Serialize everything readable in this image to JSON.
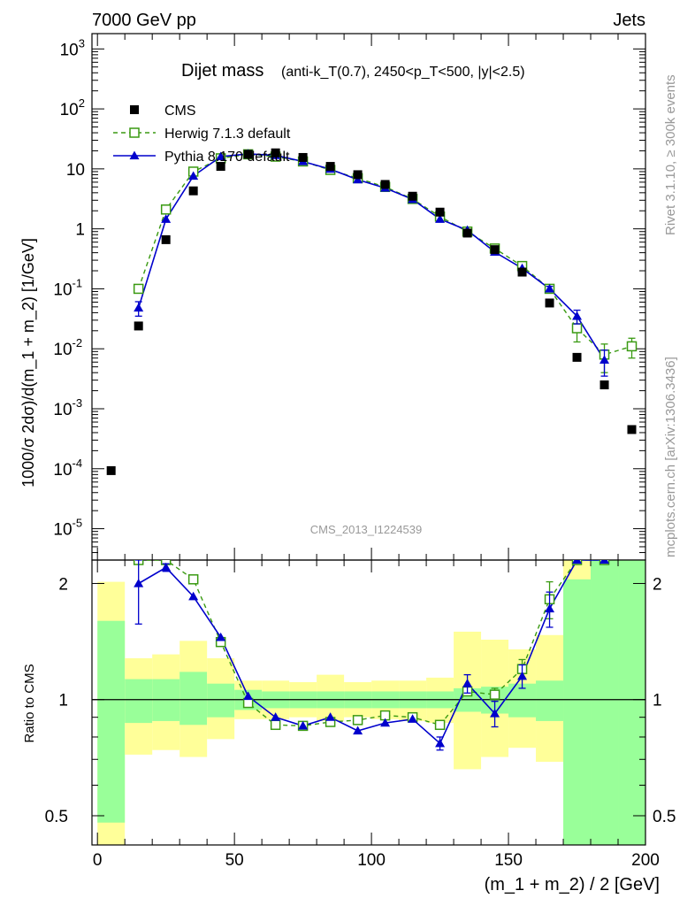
{
  "header": {
    "left": "7000 GeV pp",
    "right": "Jets",
    "side_top": "Rivet 3.1.10, ≥ 300k events",
    "side_bottom": "mcplots.cern.ch [arXiv:1306.3436]",
    "watermark": "CMS_2013_I1224539"
  },
  "colors": {
    "data": "#000000",
    "herwig": "#3a9a12",
    "pythia": "#0000cc",
    "band_inner": "#99ff99",
    "band_outer": "#ffff99"
  },
  "chart_data": {
    "type": "line",
    "title": "Dijet mass",
    "title_detail": "(anti-k_T(0.7), 2450<p_T<500, |y|<2.5)",
    "xlabel": "(m_1 + m_2) / 2 [GeV]",
    "ylabel": "1000/σ 2dσ)/d(m_1 + m_2) [1/GeV]",
    "ratio_ylabel": "Ratio to CMS",
    "xlim": [
      -2,
      200
    ],
    "ylim": [
      3e-06,
      1800
    ],
    "yscale": "log",
    "ratio_ylim": [
      0.42,
      2.3
    ],
    "ratio_yscale": "log",
    "x_ticks": [
      "0",
      "50",
      "100",
      "150",
      "200"
    ],
    "y_ticks": [
      "10^3",
      "10^2",
      "10",
      "1",
      "10^-1",
      "10^-2",
      "10^-3",
      "10^-4",
      "10^-5"
    ],
    "ratio_ticks": [
      "2",
      "1",
      "0.5"
    ],
    "legend": {
      "position": "top-left",
      "entries": [
        "CMS",
        "Herwig 7.1.3 default",
        "Pythia 8.170 default"
      ]
    },
    "bins": [
      [
        0,
        10
      ],
      [
        10,
        20
      ],
      [
        20,
        30
      ],
      [
        30,
        40
      ],
      [
        40,
        50
      ],
      [
        50,
        60
      ],
      [
        60,
        70
      ],
      [
        70,
        80
      ],
      [
        80,
        90
      ],
      [
        90,
        100
      ],
      [
        100,
        110
      ],
      [
        110,
        120
      ],
      [
        120,
        130
      ],
      [
        130,
        140
      ],
      [
        140,
        150
      ],
      [
        150,
        160
      ],
      [
        160,
        170
      ],
      [
        170,
        180
      ],
      [
        180,
        190
      ],
      [
        190,
        200
      ]
    ],
    "x": [
      5,
      15,
      25,
      35,
      45,
      55,
      65,
      75,
      85,
      95,
      105,
      115,
      125,
      135,
      145,
      155,
      165,
      175,
      185,
      195
    ],
    "series": [
      {
        "name": "CMS",
        "marker": "square",
        "values": [
          9.3e-05,
          0.024,
          0.66,
          4.3,
          11,
          17.5,
          18.5,
          15.5,
          11,
          8,
          5.5,
          3.5,
          1.9,
          0.85,
          0.45,
          0.19,
          0.058,
          0.0072,
          0.0025,
          0.00045
        ]
      },
      {
        "name": "Herwig 7.1.3 default",
        "marker": "open-square",
        "style": "dashed",
        "values": [
          null,
          0.1,
          2.1,
          9,
          15,
          17.5,
          16,
          13.3,
          9.6,
          7,
          5,
          3.15,
          1.6,
          0.9,
          0.47,
          0.24,
          0.1,
          0.022,
          0.008,
          0.011
        ],
        "yerr": [
          0,
          0,
          0,
          0,
          0,
          0,
          0,
          0,
          0,
          0,
          0,
          0,
          0,
          0,
          0,
          0,
          0.012,
          0.009,
          0.004,
          0.004
        ]
      },
      {
        "name": "Pythia 8.170 default",
        "marker": "triangle",
        "style": "solid",
        "values": [
          null,
          0.048,
          1.45,
          7.6,
          16,
          17.8,
          16.8,
          13.3,
          9.9,
          6.6,
          4.8,
          3.1,
          1.45,
          0.95,
          0.41,
          0.22,
          0.1,
          0.035,
          0.0065,
          null
        ],
        "yerr": [
          0,
          0.013,
          0,
          0,
          0,
          0,
          0,
          0,
          0,
          0,
          0,
          0,
          0,
          0,
          0,
          0,
          0.01,
          0.009,
          0.003,
          0
        ]
      }
    ],
    "ratio": {
      "herwig": [
        null,
        4.2,
        3.2,
        2.05,
        1.41,
        0.98,
        0.86,
        0.855,
        0.875,
        0.885,
        0.91,
        0.9,
        0.86,
        1.05,
        1.03,
        1.2,
        1.82,
        3.0,
        3.2,
        null
      ],
      "pythia": [
        null,
        2.0,
        2.2,
        1.85,
        1.45,
        1.02,
        0.9,
        0.855,
        0.9,
        0.83,
        0.87,
        0.89,
        0.77,
        1.1,
        0.92,
        1.15,
        1.72,
        4.8,
        2.6,
        null
      ],
      "pythia_err": [
        0,
        0.43,
        0.05,
        0,
        0,
        0,
        0,
        0,
        0,
        0,
        0,
        0,
        0.03,
        0.06,
        0.07,
        0.08,
        0.18,
        0,
        0,
        0
      ],
      "herwig_err": [
        0,
        0,
        0,
        0,
        0,
        0,
        0,
        0,
        0,
        0,
        0,
        0,
        0,
        0,
        0.04,
        0.07,
        0.2,
        0,
        0,
        0
      ],
      "band_inner": [
        [
          0.48,
          1.6
        ],
        [
          0.87,
          1.13
        ],
        [
          0.88,
          1.13
        ],
        [
          0.86,
          1.18
        ],
        [
          0.9,
          1.1
        ],
        [
          0.94,
          1.06
        ],
        [
          0.95,
          1.05
        ],
        [
          0.95,
          1.05
        ],
        [
          0.95,
          1.05
        ],
        [
          0.95,
          1.05
        ],
        [
          0.95,
          1.05
        ],
        [
          0.95,
          1.05
        ],
        [
          0.95,
          1.05
        ],
        [
          0.93,
          1.07
        ],
        [
          0.92,
          1.08
        ],
        [
          0.9,
          1.1
        ],
        [
          0.88,
          1.12
        ],
        [
          0.42,
          2.05
        ],
        [
          0.42,
          2.3
        ],
        [
          0.42,
          2.3
        ]
      ],
      "band_outer": [
        [
          0.42,
          2.02
        ],
        [
          0.72,
          1.28
        ],
        [
          0.74,
          1.31
        ],
        [
          0.71,
          1.42
        ],
        [
          0.79,
          1.28
        ],
        [
          0.89,
          1.12
        ],
        [
          0.89,
          1.12
        ],
        [
          0.9,
          1.11
        ],
        [
          0.88,
          1.16
        ],
        [
          0.9,
          1.11
        ],
        [
          0.89,
          1.12
        ],
        [
          0.88,
          1.12
        ],
        [
          0.87,
          1.14
        ],
        [
          0.66,
          1.5
        ],
        [
          0.71,
          1.43
        ],
        [
          0.75,
          1.35
        ],
        [
          0.69,
          1.47
        ],
        [
          0.42,
          2.3
        ],
        [
          0.42,
          2.3
        ],
        [
          0.42,
          2.3
        ]
      ]
    }
  }
}
